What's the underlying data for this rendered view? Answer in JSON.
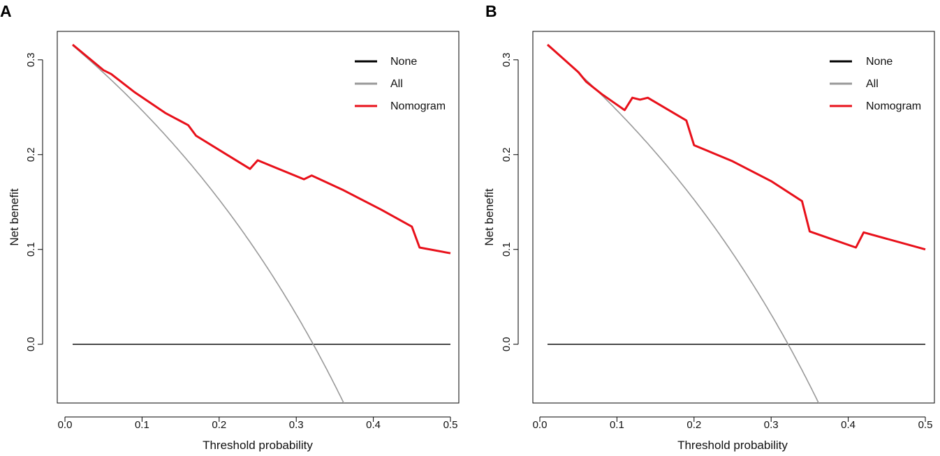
{
  "colors": {
    "none": "#000000",
    "all": "#999999",
    "nomogram": "#e8101a"
  },
  "chart_data": [
    {
      "type": "line",
      "panel_label": "A",
      "title": "",
      "xlabel": "Threshold probability",
      "ylabel": "Net benefit",
      "xlim": [
        0,
        0.5
      ],
      "ylim": [
        -0.062,
        0.33
      ],
      "xticks": [
        0.0,
        0.1,
        0.2,
        0.3,
        0.4,
        0.5
      ],
      "xtick_labels": [
        "0.0",
        "0.1",
        "0.2",
        "0.3",
        "0.4",
        "0.5"
      ],
      "yticks": [
        0.0,
        0.1,
        0.2,
        0.3
      ],
      "ytick_labels": [
        "0.0",
        "0.1",
        "0.2",
        "0.3"
      ],
      "legend_position": "top-right",
      "prevalence": 0.322,
      "series": [
        {
          "name": "None",
          "key": "none",
          "x": [
            0.01,
            0.5
          ],
          "y": [
            0,
            0
          ]
        },
        {
          "name": "All",
          "key": "all",
          "x_range": [
            0.01,
            0.365
          ],
          "formula": "p - (1 - p) * t / (1 - t)"
        },
        {
          "name": "Nomogram",
          "key": "nomogram",
          "x": [
            0.01,
            0.05,
            0.06,
            0.09,
            0.13,
            0.16,
            0.17,
            0.21,
            0.24,
            0.25,
            0.31,
            0.32,
            0.36,
            0.41,
            0.45,
            0.46,
            0.5
          ],
          "y": [
            0.316,
            0.289,
            0.285,
            0.266,
            0.244,
            0.231,
            0.22,
            0.2,
            0.185,
            0.194,
            0.174,
            0.178,
            0.163,
            0.142,
            0.124,
            0.102,
            0.096
          ]
        }
      ]
    },
    {
      "type": "line",
      "panel_label": "B",
      "title": "",
      "xlabel": "Threshold probability",
      "ylabel": "Net benefit",
      "xlim": [
        0,
        0.5
      ],
      "ylim": [
        -0.062,
        0.33
      ],
      "xticks": [
        0.0,
        0.1,
        0.2,
        0.3,
        0.4,
        0.5
      ],
      "xtick_labels": [
        "0.0",
        "0.1",
        "0.2",
        "0.3",
        "0.4",
        "0.5"
      ],
      "yticks": [
        0.0,
        0.1,
        0.2,
        0.3
      ],
      "ytick_labels": [
        "0.0",
        "0.1",
        "0.2",
        "0.3"
      ],
      "legend_position": "top-right",
      "prevalence": 0.322,
      "series": [
        {
          "name": "None",
          "key": "none",
          "x": [
            0.01,
            0.5
          ],
          "y": [
            0,
            0
          ]
        },
        {
          "name": "All",
          "key": "all",
          "x_range": [
            0.01,
            0.365
          ],
          "formula": "p - (1 - p) * t / (1 - t)"
        },
        {
          "name": "Nomogram",
          "key": "nomogram",
          "x": [
            0.01,
            0.05,
            0.06,
            0.08,
            0.11,
            0.12,
            0.13,
            0.14,
            0.19,
            0.2,
            0.25,
            0.3,
            0.34,
            0.35,
            0.41,
            0.42,
            0.5
          ],
          "y": [
            0.316,
            0.287,
            0.277,
            0.264,
            0.247,
            0.26,
            0.258,
            0.26,
            0.236,
            0.21,
            0.193,
            0.172,
            0.151,
            0.119,
            0.102,
            0.118,
            0.1
          ]
        }
      ]
    }
  ]
}
